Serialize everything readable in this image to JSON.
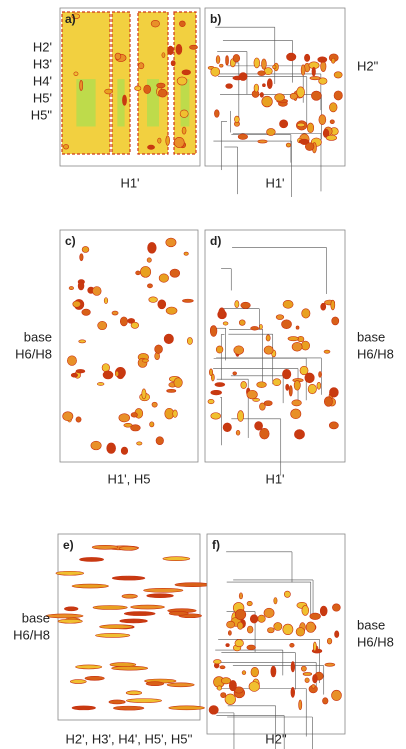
{
  "panels": [
    {
      "label": "a)",
      "side_labels": [
        "H2'",
        "H3'",
        "H4'",
        "H5'",
        "H5\""
      ],
      "x_label": "H1'"
    },
    {
      "label": "b)",
      "side_labels": [
        "H2\""
      ],
      "x_label": "H1'"
    },
    {
      "label": "c)",
      "side_labels": [
        "base",
        "H6/H8"
      ],
      "x_label": "H1', H5"
    },
    {
      "label": "d)",
      "side_labels": [
        "base",
        "H6/H8"
      ],
      "x_label": "H1'"
    },
    {
      "label": "e)",
      "side_labels": [
        "base",
        "H6/H8"
      ],
      "x_label": "H2', H3', H4', H5', H5''"
    },
    {
      "label": "f)",
      "side_labels": [
        "base",
        "H6/H8"
      ],
      "x_label": "H2''"
    }
  ]
}
